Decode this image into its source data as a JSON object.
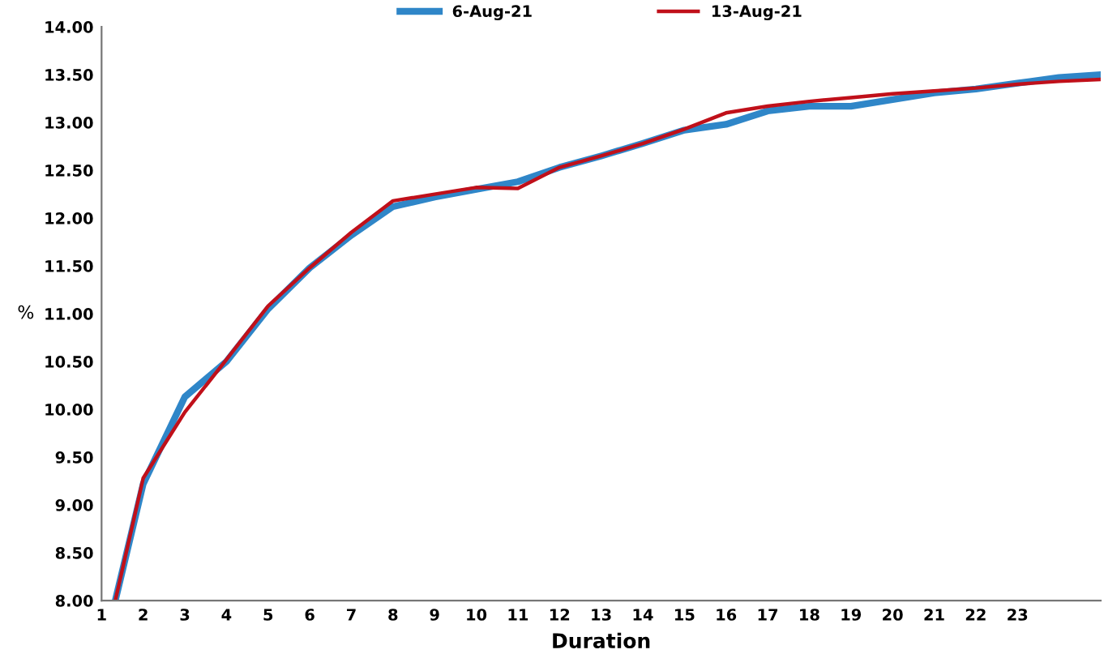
{
  "chart_data": {
    "type": "line",
    "xlabel": "Duration",
    "ylabel": "%",
    "x": [
      1.33,
      2,
      3,
      4,
      5,
      6,
      7,
      8,
      9,
      10,
      11,
      12,
      13,
      14,
      15,
      16,
      17,
      18,
      19,
      20,
      21,
      22,
      23,
      24,
      25
    ],
    "series": [
      {
        "name": "6-Aug-21",
        "color": "#2f86c8",
        "values": [
          8.0,
          9.22,
          10.13,
          10.5,
          11.05,
          11.48,
          11.82,
          12.12,
          12.22,
          12.3,
          12.38,
          12.53,
          12.65,
          12.78,
          12.92,
          12.98,
          13.12,
          13.17,
          13.17,
          13.24,
          13.31,
          13.35,
          13.41,
          13.47,
          13.5
        ]
      },
      {
        "name": "13-Aug-21",
        "color": "#c0101a",
        "values": [
          8.0,
          9.28,
          9.97,
          10.52,
          11.08,
          11.48,
          11.85,
          12.18,
          12.25,
          12.32,
          12.31,
          12.53,
          12.65,
          12.78,
          12.93,
          13.1,
          13.17,
          13.22,
          13.26,
          13.3,
          13.33,
          13.36,
          13.4,
          13.43,
          13.45
        ]
      }
    ],
    "xlim": [
      1,
      25
    ],
    "xticks": [
      1,
      2,
      3,
      4,
      5,
      6,
      7,
      8,
      9,
      10,
      11,
      12,
      13,
      14,
      15,
      16,
      17,
      18,
      19,
      20,
      21,
      22,
      23
    ],
    "ylim": [
      8,
      14
    ],
    "yticks": [
      {
        "value": 8,
        "label": "8.00"
      },
      {
        "value": 8.5,
        "label": "8.50"
      },
      {
        "value": 9,
        "label": "9.00"
      },
      {
        "value": 9.5,
        "label": "9.50"
      },
      {
        "value": 10,
        "label": "10.00"
      },
      {
        "value": 10.5,
        "label": "10.50"
      },
      {
        "value": 11,
        "label": "11.00"
      },
      {
        "value": 11.5,
        "label": "11.50"
      },
      {
        "value": 12,
        "label": "12.00"
      },
      {
        "value": 12.5,
        "label": "12.50"
      },
      {
        "value": 13,
        "label": "13.00"
      },
      {
        "value": 13.5,
        "label": "13.50"
      },
      {
        "value": 14,
        "label": "14.00"
      }
    ],
    "grid": false,
    "legend": "top",
    "marker": "none",
    "line_style": "solid"
  }
}
